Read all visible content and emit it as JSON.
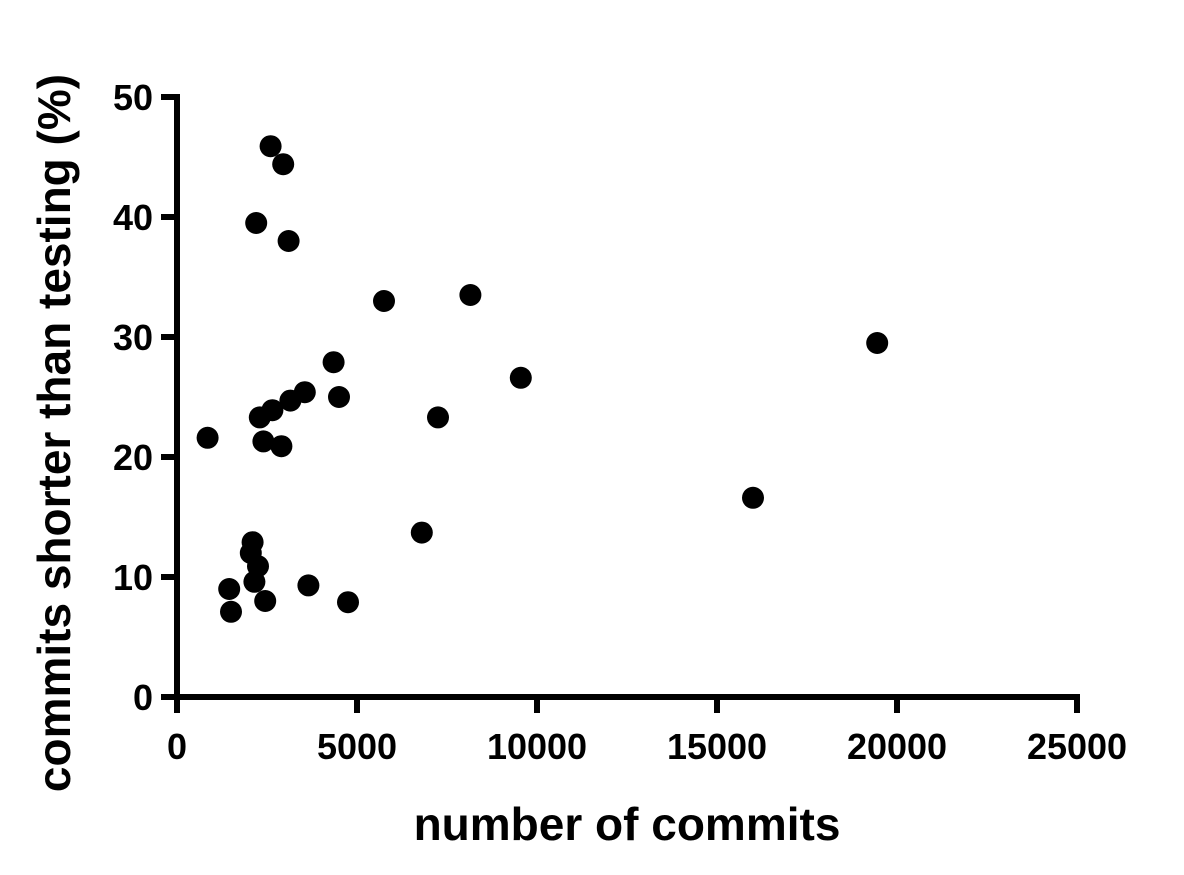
{
  "chart_data": {
    "type": "scatter",
    "xlabel": "number of commits",
    "ylabel": "commits shorter than testing (%)",
    "xlim": [
      0,
      25000
    ],
    "ylim": [
      0,
      50
    ],
    "xticks": [
      0,
      5000,
      10000,
      15000,
      20000,
      25000
    ],
    "yticks": [
      0,
      10,
      20,
      30,
      40,
      50
    ],
    "grid": false,
    "series": [
      {
        "marker_color": "#000000",
        "points": [
          {
            "x": 850,
            "y": 21.6
          },
          {
            "x": 1450,
            "y": 9.0
          },
          {
            "x": 1500,
            "y": 7.1
          },
          {
            "x": 2050,
            "y": 12.0
          },
          {
            "x": 2100,
            "y": 12.9
          },
          {
            "x": 2150,
            "y": 9.6
          },
          {
            "x": 2200,
            "y": 39.5
          },
          {
            "x": 2250,
            "y": 10.9
          },
          {
            "x": 2300,
            "y": 23.3
          },
          {
            "x": 2400,
            "y": 21.3
          },
          {
            "x": 2450,
            "y": 8.0
          },
          {
            "x": 2600,
            "y": 45.9
          },
          {
            "x": 2650,
            "y": 23.9
          },
          {
            "x": 2900,
            "y": 20.9
          },
          {
            "x": 2950,
            "y": 44.4
          },
          {
            "x": 3100,
            "y": 38.0
          },
          {
            "x": 3150,
            "y": 24.7
          },
          {
            "x": 3550,
            "y": 25.4
          },
          {
            "x": 3650,
            "y": 9.3
          },
          {
            "x": 4350,
            "y": 27.9
          },
          {
            "x": 4500,
            "y": 25.0
          },
          {
            "x": 4750,
            "y": 7.9
          },
          {
            "x": 5750,
            "y": 33.0
          },
          {
            "x": 6800,
            "y": 13.7
          },
          {
            "x": 7250,
            "y": 23.3
          },
          {
            "x": 8150,
            "y": 33.5
          },
          {
            "x": 9550,
            "y": 26.6
          },
          {
            "x": 16000,
            "y": 16.6
          },
          {
            "x": 19450,
            "y": 29.5
          }
        ]
      }
    ]
  }
}
